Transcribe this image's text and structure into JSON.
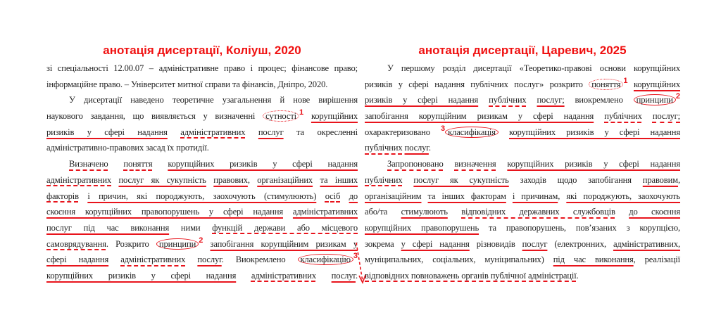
{
  "accent_color": "#e8141c",
  "left": {
    "title": "анотація дисертації, Коліуш, 2020",
    "lines": [
      {
        "segs": [
          [
            "зі спеціальності 12.00.07 – адміністративне право і процес; фінансове право;",
            "n"
          ]
        ]
      },
      {
        "segs": [
          [
            "інформаційне право. – Університет митної справи та фінансів, Дніпро, 2020.",
            "n"
          ]
        ],
        "last": true
      },
      {
        "indent": true,
        "segs": [
          [
            "У дисертації наведено теоретичне узагальнення й нове вирішення",
            "n"
          ]
        ]
      },
      {
        "segs": [
          [
            "наукового завдання, що виявляється у визначенні ",
            "n"
          ],
          [
            "сутності",
            "o",
            "1"
          ],
          [
            " ",
            "n"
          ],
          [
            "корупційних",
            "s"
          ]
        ]
      },
      {
        "segs": [
          [
            "ризиків у сфері надання",
            "s"
          ],
          [
            " ",
            "n"
          ],
          [
            "адміністративних",
            "d"
          ],
          [
            " ",
            "n"
          ],
          [
            "послуг",
            "s"
          ],
          [
            " та окресленні",
            "n"
          ]
        ]
      },
      {
        "last": true,
        "segs": [
          [
            "адміністративно-правових засад їх протидії.",
            "n"
          ]
        ]
      },
      {
        "indent": true,
        "segs": [
          [
            "Визначено",
            "d"
          ],
          [
            " ",
            "n"
          ],
          [
            "поняття",
            "d"
          ],
          [
            " ",
            "n"
          ],
          [
            "корупційних ризиків у сфері надання",
            "s"
          ]
        ]
      },
      {
        "segs": [
          [
            "адміністративних",
            "d"
          ],
          [
            " ",
            "n"
          ],
          [
            "послуг як сукупність",
            "s"
          ],
          [
            " ",
            "n"
          ],
          [
            "правових",
            "s"
          ],
          [
            ", ",
            "n"
          ],
          [
            "організаційних",
            "s"
          ],
          [
            " ",
            "n"
          ],
          [
            "та інших",
            "s"
          ]
        ]
      },
      {
        "segs": [
          [
            "факторів",
            "d"
          ],
          [
            " ",
            "n"
          ],
          [
            "і причин, які породжують, заохочують (стимулюють)",
            "s"
          ],
          [
            " ",
            "n"
          ],
          [
            "осіб",
            "d"
          ],
          [
            " ",
            "n"
          ],
          [
            "до",
            "s"
          ]
        ]
      },
      {
        "segs": [
          [
            "скоєння корупційних правопорушень у сфері надання",
            "s"
          ],
          [
            " ",
            "n"
          ],
          [
            "адміністративних",
            "s"
          ]
        ]
      },
      {
        "segs": [
          [
            "послуг під час виконання",
            "s"
          ],
          [
            " ними ",
            "n"
          ],
          [
            "функцій держави або місцевого",
            "d"
          ]
        ]
      },
      {
        "segs": [
          [
            "самоврядування",
            "d"
          ],
          [
            ". Розкрито ",
            "n"
          ],
          [
            "принципи",
            "c",
            "2"
          ],
          [
            " ",
            "n"
          ],
          [
            "запобігання корупційним ризикам у",
            "s"
          ]
        ]
      },
      {
        "segs": [
          [
            "сфері надання",
            "s"
          ],
          [
            " ",
            "n"
          ],
          [
            "адміністративних",
            "d"
          ],
          [
            " ",
            "n"
          ],
          [
            "послуг",
            "s"
          ],
          [
            ". Виокремлено ",
            "n"
          ],
          [
            "класифікацію",
            "c",
            "3"
          ]
        ]
      },
      {
        "segs": [
          [
            "корупційних ризиків у сфері надання",
            "s"
          ],
          [
            " ",
            "n"
          ],
          [
            "адміністративних",
            "d"
          ],
          [
            " ",
            "n"
          ],
          [
            "послуг",
            "s"
          ],
          [
            ".",
            "n"
          ]
        ]
      }
    ]
  },
  "right": {
    "title": "анотація дисертації, Царевич, 2025",
    "lines": [
      {
        "indent": true,
        "segs": [
          [
            "У першому розділ дисертації «Теоретико-правові основи корупційних",
            "n"
          ]
        ]
      },
      {
        "segs": [
          [
            "ризиків у сфері надання публічних послуг» розкрито ",
            "n"
          ],
          [
            "поняття",
            "o",
            "1"
          ],
          [
            " ",
            "n"
          ],
          [
            "корупційних",
            "s"
          ]
        ]
      },
      {
        "segs": [
          [
            "ризиків у сфері надання",
            "s"
          ],
          [
            " ",
            "n"
          ],
          [
            "публічних",
            "d"
          ],
          [
            " ",
            "n"
          ],
          [
            "послуг;",
            "s"
          ],
          [
            "  виокремлено ",
            "n"
          ],
          [
            "принципи",
            "c",
            "2"
          ]
        ]
      },
      {
        "segs": [
          [
            "запобігання корупційним ризикам у сфері надання",
            "s"
          ],
          [
            " ",
            "n"
          ],
          [
            "публічних",
            "d"
          ],
          [
            " ",
            "n"
          ],
          [
            "послуг;",
            "d"
          ]
        ]
      },
      {
        "segs": [
          [
            "охарактеризовано ",
            "n"
          ],
          [
            "класифікація",
            "c",
            "3"
          ],
          [
            " ",
            "n"
          ],
          [
            "корупційних ризиків у сфері надання",
            "s"
          ]
        ]
      },
      {
        "last": true,
        "segs": [
          [
            "публічних",
            "d"
          ],
          [
            " ",
            "n"
          ],
          [
            "послуг",
            "s"
          ],
          [
            ".",
            "n"
          ]
        ]
      },
      {
        "indent": true,
        "segs": [
          [
            "Запропоновано",
            "d"
          ],
          [
            " ",
            "n"
          ],
          [
            "визначення",
            "d"
          ],
          [
            " ",
            "n"
          ],
          [
            "корупційних ризиків у сфері надання",
            "s"
          ]
        ]
      },
      {
        "segs": [
          [
            "публічних",
            "d"
          ],
          [
            " ",
            "n"
          ],
          [
            "послуг як сукупність",
            "s"
          ],
          [
            " заходів щодо запобігання ",
            "n"
          ],
          [
            "правовим",
            "s"
          ],
          [
            ",",
            "n"
          ]
        ]
      },
      {
        "segs": [
          [
            "організаційним",
            "s"
          ],
          [
            " ",
            "n"
          ],
          [
            "та інших факторам",
            "s"
          ],
          [
            " ",
            "n"
          ],
          [
            "і причинам",
            "s"
          ],
          [
            ", ",
            "n"
          ],
          [
            "які породжують, заохочують",
            "s"
          ]
        ]
      },
      {
        "segs": [
          [
            "або/та ",
            "n"
          ],
          [
            "стимулюють",
            "s"
          ],
          [
            " ",
            "n"
          ],
          [
            "відповідних державних службовців",
            "d"
          ],
          [
            " ",
            "n"
          ],
          [
            "до скоєння",
            "s"
          ]
        ]
      },
      {
        "segs": [
          [
            "корупційних правопорушень",
            "s"
          ],
          [
            " та правопорушень, пов’язаних з корупцією,",
            "n"
          ]
        ]
      },
      {
        "segs": [
          [
            "зокрема ",
            "n"
          ],
          [
            "у сфері надання",
            "s"
          ],
          [
            " різновидів ",
            "n"
          ],
          [
            "послуг",
            "s"
          ],
          [
            " (електронних, ",
            "n"
          ],
          [
            "адміністративних,",
            "s"
          ]
        ]
      },
      {
        "segs": [
          [
            "муніципальних, соціальних, муніципальних) ",
            "n"
          ],
          [
            "під час виконання",
            "s"
          ],
          [
            ", реалізації",
            "n"
          ]
        ]
      },
      {
        "last": true,
        "segs": [
          [
            "відповідних повноважень органів публічної адміністрації",
            "d"
          ],
          [
            ".",
            "n"
          ]
        ]
      }
    ]
  }
}
